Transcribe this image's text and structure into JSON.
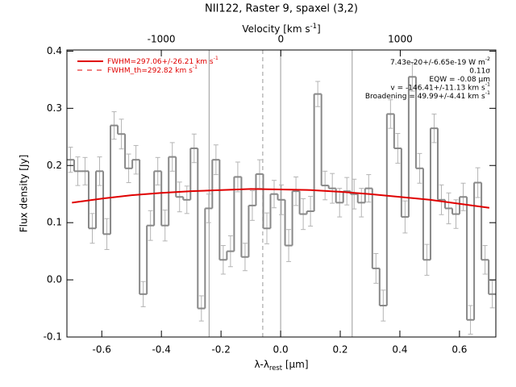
{
  "chart_data": {
    "type": "step",
    "title": "NII122, Raster 9, spaxel (3,2)",
    "x_label": {
      "text": "λ-λ",
      "sub": "rest",
      "unit": " [μm]"
    },
    "y_label": "Flux density [Jy]",
    "top_label": {
      "text": "Velocity [km s",
      "sup": "-1",
      "end": "]"
    },
    "xlim": [
      -0.717,
      0.722
    ],
    "xticks": [
      {
        "value": -0.6,
        "label": "-0.6"
      },
      {
        "value": -0.4,
        "label": "-0.4"
      },
      {
        "value": -0.2,
        "label": "-0.2"
      },
      {
        "value": 0,
        "label": "0.0"
      },
      {
        "value": 0.2,
        "label": "0.2"
      },
      {
        "value": 0.4,
        "label": "0.4"
      },
      {
        "value": 0.6,
        "label": "0.6"
      }
    ],
    "ylim": [
      -0.1,
      0.402
    ],
    "yticks": [
      {
        "value": -0.1,
        "label": "-0.1"
      },
      {
        "value": 0,
        "label": "0.0"
      },
      {
        "value": 0.1,
        "label": "0.1"
      },
      {
        "value": 0.2,
        "label": "0.2"
      },
      {
        "value": 0.3,
        "label": "0.3"
      },
      {
        "value": 0.4,
        "label": "0.4"
      }
    ],
    "top_xlim": [
      -1790,
      1800
    ],
    "top_xticks": [
      -1000,
      0,
      1000
    ],
    "bin_width": 0.0244,
    "x": [
      -0.705,
      -0.6806,
      -0.6562,
      -0.6318,
      -0.6074,
      -0.583,
      -0.5586,
      -0.5342,
      -0.5098,
      -0.4854,
      -0.461,
      -0.4366,
      -0.4122,
      -0.3878,
      -0.3634,
      -0.339,
      -0.3146,
      -0.2902,
      -0.2658,
      -0.2414,
      -0.217,
      -0.1926,
      -0.1682,
      -0.1438,
      -0.1194,
      -0.095,
      -0.0706,
      -0.0462,
      -0.0218,
      0.0026,
      0.027,
      0.0514,
      0.0758,
      0.1002,
      0.1246,
      0.149,
      0.1734,
      0.1978,
      0.2222,
      0.2466,
      0.271,
      0.2954,
      0.3198,
      0.3442,
      0.3686,
      0.393,
      0.4174,
      0.4418,
      0.4662,
      0.4906,
      0.515,
      0.5394,
      0.5638,
      0.5882,
      0.6126,
      0.637,
      0.6614,
      0.6858,
      0.7102
    ],
    "values": [
      0.21,
      0.19,
      0.19,
      0.09,
      0.19,
      0.08,
      0.27,
      0.255,
      0.195,
      0.21,
      -0.025,
      0.095,
      0.19,
      0.095,
      0.215,
      0.145,
      0.14,
      0.23,
      -0.05,
      0.125,
      0.21,
      0.035,
      0.05,
      0.18,
      0.04,
      0.13,
      0.185,
      0.09,
      0.15,
      0.14,
      0.06,
      0.155,
      0.115,
      0.12,
      0.325,
      0.165,
      0.16,
      0.135,
      0.155,
      0.15,
      0.135,
      0.16,
      0.02,
      -0.045,
      0.29,
      0.23,
      0.11,
      0.355,
      0.195,
      0.035,
      0.265,
      0.14,
      0.125,
      0.115,
      0.145,
      -0.07,
      0.17,
      0.035,
      -0.025
    ],
    "errors": [
      0.022,
      0.025,
      0.024,
      0.026,
      0.025,
      0.027,
      0.024,
      0.026,
      0.025,
      0.025,
      0.022,
      0.026,
      0.024,
      0.027,
      0.025,
      0.026,
      0.024,
      0.025,
      0.022,
      0.025,
      0.026,
      0.025,
      0.027,
      0.026,
      0.024,
      0.026,
      0.025,
      0.027,
      0.024,
      0.026,
      0.028,
      0.025,
      0.027,
      0.026,
      0.022,
      0.025,
      0.026,
      0.025,
      0.024,
      0.026,
      0.025,
      0.024,
      0.026,
      0.027,
      0.025,
      0.026,
      0.028,
      0.025,
      0.026,
      0.027,
      0.025,
      0.026,
      0.027,
      0.025,
      0.024,
      0.025,
      0.026,
      0.025,
      0.024
    ],
    "color": "#888888",
    "error_color": "#b4b4b4",
    "fit": {
      "color": "#e00000",
      "x": [
        -0.7,
        -0.6,
        -0.5,
        -0.4,
        -0.3,
        -0.2,
        -0.1,
        0,
        0.1,
        0.2,
        0.3,
        0.4,
        0.5,
        0.6,
        0.7
      ],
      "values": [
        0.135,
        0.142,
        0.148,
        0.152,
        0.155,
        0.157,
        0.159,
        0.158,
        0.157,
        0.154,
        0.15,
        0.145,
        0.14,
        0.133,
        0.126
      ]
    },
    "vlines": [
      -0.24,
      0,
      0.24
    ],
    "vline_color": "#999999",
    "dashed_vline": -0.06,
    "legend": [
      {
        "text": "FWHM=297.06+/-26.21 km s",
        "sup": "-1",
        "style": "solid"
      },
      {
        "text": "FWHM_th=292.82 km s",
        "sup": "-1",
        "style": "dashed"
      }
    ],
    "annotations": [
      {
        "text": "7.43e-20+/-6.65e-19 W m",
        "sup": "-2"
      },
      {
        "text": "0.11σ"
      },
      {
        "text": "EQW = -0.08 μm"
      },
      {
        "text": "v = -146.41+/-11.13 km s",
        "sup": "-1"
      },
      {
        "text": "Broadening = 49.99+/-4.41 km s",
        "sup": "-1"
      }
    ]
  }
}
